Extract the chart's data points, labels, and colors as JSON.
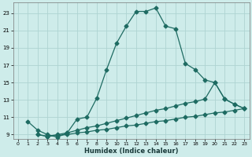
{
  "xlabel": "Humidex (Indice chaleur)",
  "bg_color": "#ceecea",
  "grid_color": "#aed4d2",
  "line_color": "#1e6b62",
  "xlim": [
    -0.5,
    23.5
  ],
  "ylim": [
    8.5,
    24.2
  ],
  "yticks": [
    9,
    11,
    13,
    15,
    17,
    19,
    21,
    23
  ],
  "xticks": [
    0,
    1,
    2,
    3,
    4,
    5,
    6,
    7,
    8,
    9,
    10,
    11,
    12,
    13,
    14,
    15,
    16,
    17,
    18,
    19,
    20,
    21,
    22,
    23
  ],
  "series1_x": [
    1,
    2,
    3,
    4,
    5,
    6,
    7,
    8,
    9,
    10,
    11,
    12,
    13,
    14,
    15,
    16,
    17,
    18,
    19,
    20,
    21,
    22,
    23
  ],
  "series1_y": [
    10.5,
    9.5,
    9.0,
    8.7,
    9.2,
    10.8,
    11.0,
    13.2,
    16.5,
    19.5,
    21.5,
    23.2,
    23.2,
    23.6,
    21.5,
    21.2,
    17.2,
    16.5,
    15.3,
    15.0,
    13.1,
    12.5,
    12.0
  ],
  "series2_x": [
    2,
    3,
    4,
    5,
    6,
    7,
    8,
    9,
    10,
    11,
    12,
    13,
    14,
    15,
    16,
    17,
    18,
    19,
    20,
    21,
    22,
    23
  ],
  "series2_y": [
    9.0,
    8.8,
    9.0,
    9.2,
    9.5,
    9.8,
    10.0,
    10.3,
    10.6,
    10.9,
    11.2,
    11.5,
    11.8,
    12.0,
    12.3,
    12.6,
    12.8,
    13.1,
    15.0,
    13.1,
    12.5,
    12.0
  ],
  "series3_x": [
    2,
    3,
    4,
    5,
    6,
    7,
    8,
    9,
    10,
    11,
    12,
    13,
    14,
    15,
    16,
    17,
    18,
    19,
    20,
    21,
    22,
    23
  ],
  "series3_y": [
    9.0,
    8.8,
    8.9,
    9.0,
    9.2,
    9.3,
    9.5,
    9.6,
    9.8,
    10.0,
    10.1,
    10.3,
    10.5,
    10.6,
    10.8,
    11.0,
    11.1,
    11.3,
    11.5,
    11.6,
    11.8,
    12.0
  ]
}
